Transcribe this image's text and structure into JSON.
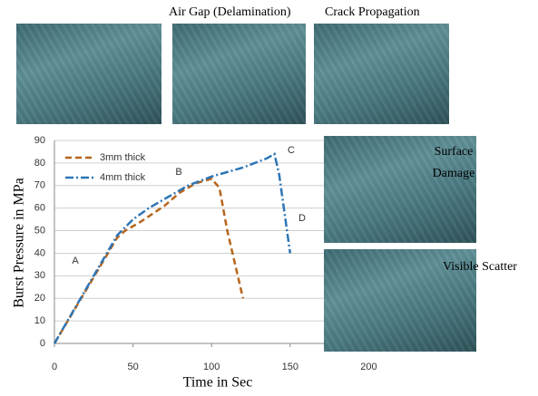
{
  "chart_data": {
    "type": "line",
    "xlabel": "Time in Sec",
    "ylabel": "Burst Pressure in MPa",
    "xlim": [
      0,
      250
    ],
    "xticks": [
      0,
      50,
      100,
      150,
      200
    ],
    "ylim": [
      0,
      90
    ],
    "yticks": [
      0,
      10,
      20,
      30,
      40,
      50,
      60,
      70,
      80,
      90
    ],
    "grid": true,
    "legend": "upper left",
    "series": [
      {
        "name": "3mm thick",
        "color": "#b5651d",
        "style": "dashed",
        "x": [
          0,
          40,
          45,
          55,
          70,
          80,
          90,
          100,
          105,
          110,
          115,
          120
        ],
        "values": [
          0,
          47,
          50,
          54,
          61,
          67,
          71,
          73,
          69,
          50,
          35,
          20
        ]
      },
      {
        "name": "4mm thick",
        "color": "#2e75b6",
        "style": "dashdot",
        "x": [
          0,
          40,
          50,
          60,
          75,
          85,
          100,
          120,
          135,
          140,
          143,
          148,
          150
        ],
        "values": [
          0,
          48,
          55,
          60,
          66,
          70,
          74,
          78,
          82,
          84,
          75,
          50,
          40
        ]
      }
    ],
    "annotations": [
      "A",
      "B",
      "C",
      "D"
    ]
  },
  "photo_captions": [
    "Air Gap (Delamination)",
    "Crack Propagation",
    "Surface Damage",
    "Visible Scatter"
  ]
}
